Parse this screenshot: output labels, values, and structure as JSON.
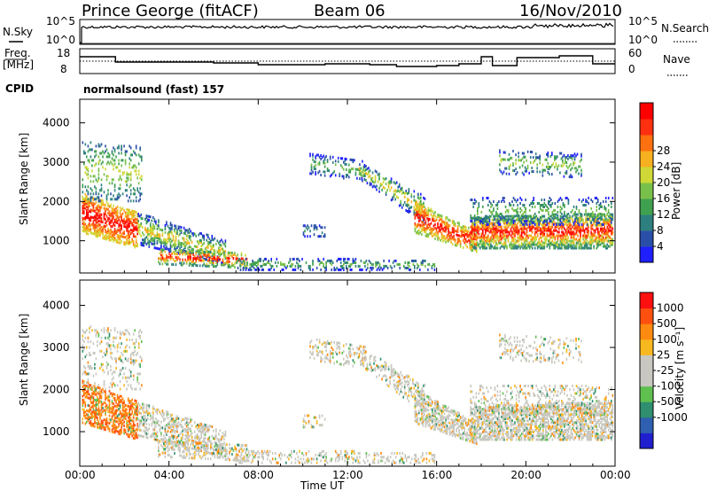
{
  "header": {
    "title": "Prince George (fitACF)",
    "beam": "Beam 06",
    "date": "16/Nov/2010"
  },
  "nsky": {
    "label": "N.Sky",
    "ticks": [
      "10^5",
      "10^0"
    ],
    "right_label": "N.Search",
    "right_ticks": [
      "10^5",
      "10^0"
    ]
  },
  "freq": {
    "label_line1": "Freq.",
    "label_line2": "[MHz]",
    "ticks": [
      "18",
      "8"
    ],
    "right_label": "Nave",
    "right_ticks": [
      "60",
      "0"
    ]
  },
  "cpid": {
    "label": "CPID",
    "value": "normalsound (fast) 157"
  },
  "chart_data": [
    {
      "type": "heatmap",
      "title": "",
      "xlabel": "Time UT",
      "ylabel": "Slant Range [km]",
      "y_ticks": [
        "1000",
        "2000",
        "3000",
        "4000"
      ],
      "ylim": [
        180,
        4600
      ],
      "x_ticks": [
        "00:00",
        "04:00",
        "08:00",
        "12:00",
        "16:00",
        "20:00",
        "00:00"
      ],
      "colorbar": {
        "label": "Power [dB]",
        "ticks": [
          "4",
          "8",
          "12",
          "16",
          "20",
          "24",
          "28"
        ],
        "colors": [
          "#1f1fff",
          "#2a4fa8",
          "#2e7f7f",
          "#3fa050",
          "#79c04a",
          "#cfd836",
          "#f7b020",
          "#ff7010",
          "#ff3010",
          "#ff0000"
        ]
      }
    },
    {
      "type": "heatmap",
      "title": "",
      "xlabel": "Time UT",
      "ylabel": "Slant Range [km]",
      "y_ticks": [
        "1000",
        "2000",
        "3000",
        "4000"
      ],
      "ylim": [
        180,
        4600
      ],
      "x_ticks": [
        "00:00",
        "04:00",
        "08:00",
        "12:00",
        "16:00",
        "20:00",
        "00:00"
      ],
      "colorbar": {
        "label": "Velocity [m s⁻¹]",
        "ticks": [
          "1000",
          "500",
          "100",
          "25",
          "-25",
          "-100",
          "-500",
          "-1000"
        ],
        "colors": [
          "#1f1fd0",
          "#2f5fb0",
          "#2f8f6f",
          "#5fc04f",
          "#c8c8c0",
          "#c8c8c0",
          "#f8b820",
          "#ff8a10",
          "#ff5010",
          "#ff1010"
        ]
      }
    }
  ],
  "x_axis_label": "Time UT"
}
